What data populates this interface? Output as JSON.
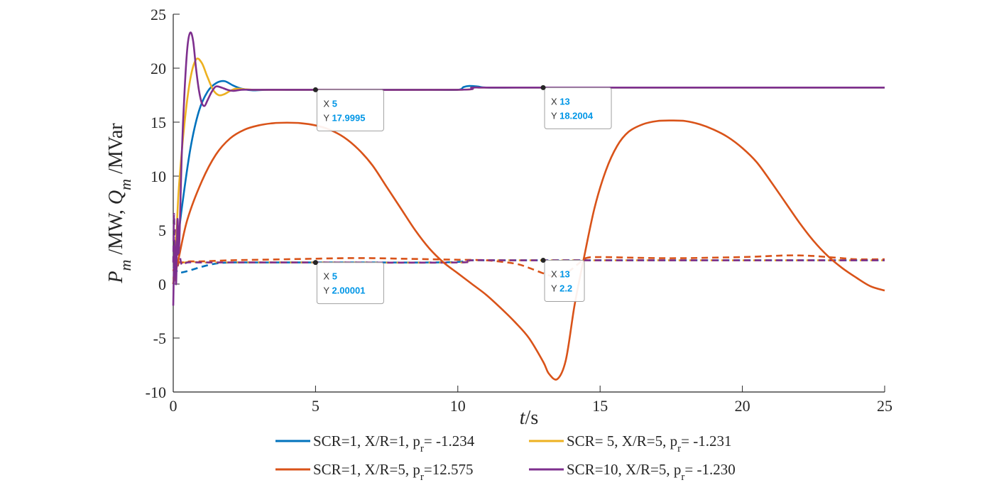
{
  "chart_data": {
    "type": "line",
    "xlabel": "t/s",
    "xlabel_italic": "t",
    "xlabel_unit": "/s",
    "ylabel": "P_m /MW, Q_m /MVar",
    "ylabel_parts": {
      "p": "P",
      "p_sub": "m",
      "p_unit": " /MW, ",
      "q": "Q",
      "q_sub": "m",
      "q_unit": " /MVar"
    },
    "xlim": [
      0,
      25
    ],
    "ylim": [
      -10,
      25
    ],
    "xticks": [
      0,
      5,
      10,
      15,
      20,
      25
    ],
    "yticks": [
      -10,
      -5,
      0,
      5,
      10,
      15,
      20,
      25
    ],
    "colors": {
      "blue": "#0072BD",
      "orange": "#D95319",
      "yellow": "#EDB120",
      "purple": "#7E2F8E"
    },
    "series": [
      {
        "name": "SCR=1, X/R=1, p_r= -1.234",
        "legend_main": "SCR=1, X/R=1, p",
        "legend_sub": "r",
        "legend_tail": "= -1.234",
        "color": "#0072BD",
        "P": {
          "x": [
            0,
            0.1,
            0.3,
            0.6,
            0.9,
            1.2,
            1.5,
            1.8,
            2.1,
            2.4,
            2.8,
            3.3,
            4,
            5,
            6,
            7,
            8,
            9,
            10,
            10.2,
            10.4,
            10.7,
            11,
            12,
            13,
            15,
            20,
            25
          ],
          "y": [
            0,
            2.5,
            7,
            12.5,
            16,
            17.8,
            18.6,
            18.8,
            18.4,
            18.1,
            17.95,
            18.0,
            18.0,
            18.0,
            18.0,
            18.0,
            18.0,
            18.0,
            18.0,
            18.25,
            18.35,
            18.3,
            18.2,
            18.2,
            18.2,
            18.2,
            18.2,
            18.2
          ]
        },
        "Q": {
          "x": [
            0,
            0.1,
            0.2,
            0.5,
            1,
            1.5,
            2,
            3,
            4,
            5,
            7,
            9,
            10,
            10.5,
            11,
            13,
            15,
            20,
            25
          ],
          "y": [
            1.6,
            1.3,
            1.05,
            1.2,
            1.6,
            1.9,
            2.0,
            2.0,
            2.0,
            2.0,
            2.0,
            2.0,
            2.05,
            2.2,
            2.2,
            2.2,
            2.2,
            2.2,
            2.2
          ]
        }
      },
      {
        "name": "SCR= 5, X/R=5, p_r= -1.231",
        "legend_main": "SCR=  5, X/R=5, p",
        "legend_sub": "r",
        "legend_tail": "= -1.231",
        "color": "#EDB120",
        "P": {
          "x": [
            0,
            0.1,
            0.2,
            0.4,
            0.6,
            0.8,
            1.0,
            1.2,
            1.4,
            1.6,
            1.8,
            2.0,
            2.2,
            2.5,
            2.8,
            3.2,
            4,
            5,
            10,
            10.5,
            11,
            13,
            25
          ],
          "y": [
            0,
            4,
            9,
            15,
            19,
            20.8,
            20.5,
            19.2,
            18.0,
            17.5,
            17.6,
            17.9,
            18.1,
            18.05,
            18.0,
            18.0,
            18.0,
            18.0,
            18.0,
            18.2,
            18.2,
            18.2,
            18.2
          ]
        },
        "Q": {
          "x": [
            0,
            0.1,
            0.2,
            0.4,
            0.7,
            1,
            2,
            5,
            10,
            10.5,
            13,
            25
          ],
          "y": [
            0.5,
            1.5,
            1.9,
            2.0,
            2.05,
            2.0,
            2.0,
            2.0,
            2.0,
            2.2,
            2.2,
            2.2
          ]
        }
      },
      {
        "name": "SCR=1, X/R=5, p_r=12.575",
        "legend_main": "SCR=1, X/R=5, p",
        "legend_sub": "r",
        "legend_tail": "=12.575",
        "color": "#D95319",
        "P": {
          "x": [
            0,
            0.2,
            0.5,
            1,
            1.5,
            2,
            2.5,
            3,
            3.5,
            4,
            4.5,
            5,
            5.5,
            6,
            6.5,
            7,
            7.5,
            8,
            8.5,
            9,
            9.5,
            10,
            10.5,
            11,
            11.5,
            12,
            12.5,
            13,
            13.2,
            13.5,
            13.8,
            14.1,
            14.4,
            14.8,
            15.2,
            15.6,
            16,
            16.5,
            17,
            17.5,
            18,
            18.5,
            19,
            19.5,
            20,
            20.5,
            21,
            21.5,
            22,
            22.5,
            23,
            23.5,
            24,
            24.5,
            25
          ],
          "y": [
            0,
            2.5,
            6,
            9.5,
            12,
            13.5,
            14.3,
            14.7,
            14.9,
            14.95,
            14.9,
            14.7,
            14.3,
            13.6,
            12.5,
            11,
            9,
            7,
            5,
            3.3,
            2,
            1,
            0,
            -1,
            -2.2,
            -3.5,
            -5,
            -7.2,
            -8.3,
            -8.8,
            -7,
            -2,
            2,
            7,
            10.5,
            12.8,
            14.1,
            14.8,
            15.1,
            15.15,
            15.1,
            14.8,
            14.3,
            13.6,
            12.6,
            11.3,
            9.5,
            7.6,
            5.7,
            4,
            2.6,
            1.5,
            0.6,
            -0.2,
            -0.6
          ]
        },
        "Q": {
          "x": [
            0,
            0.1,
            0.3,
            0.6,
            1,
            2,
            3,
            4,
            5,
            6,
            7,
            8,
            9,
            10,
            11,
            12,
            12.5,
            13,
            13.4,
            13.8,
            14.2,
            14.5,
            15,
            16,
            17,
            18,
            19,
            20,
            21,
            21.5,
            22,
            22.5,
            23,
            23.5,
            24,
            25
          ],
          "y": [
            1.2,
            2.0,
            2.0,
            2.1,
            2.1,
            2.2,
            2.25,
            2.3,
            2.35,
            2.4,
            2.4,
            2.35,
            2.3,
            2.25,
            2.2,
            1.9,
            1.5,
            1.0,
            0.7,
            1.0,
            1.8,
            2.4,
            2.5,
            2.45,
            2.4,
            2.4,
            2.45,
            2.5,
            2.6,
            2.65,
            2.65,
            2.6,
            2.5,
            2.4,
            2.3,
            2.3
          ]
        }
      },
      {
        "name": "SCR=10, X/R=5, p_r= -1.230",
        "legend_main": "SCR=10, X/R=5, p",
        "legend_sub": "r",
        "legend_tail": "= -1.230",
        "color": "#7E2F8E",
        "P": {
          "x": [
            0,
            0.05,
            0.1,
            0.15,
            0.2,
            0.3,
            0.4,
            0.5,
            0.6,
            0.7,
            0.8,
            0.9,
            1.0,
            1.1,
            1.2,
            1.35,
            1.5,
            1.7,
            1.9,
            2.1,
            2.4,
            2.7,
            3,
            3.5,
            4,
            5,
            10,
            10.5,
            11,
            13,
            25
          ],
          "y": [
            -2,
            4,
            0,
            6,
            3,
            12,
            18,
            22,
            23.3,
            22.5,
            20,
            18,
            16.8,
            16.5,
            17.0,
            17.8,
            18.3,
            18.2,
            18.0,
            17.9,
            18.0,
            18.0,
            18.0,
            18.0,
            18.0,
            18.0,
            18.0,
            18.2,
            18.2,
            18.2,
            18.2
          ]
        },
        "Q": {
          "x": [
            0,
            0.03,
            0.06,
            0.1,
            0.15,
            0.2,
            0.3,
            0.5,
            1,
            2,
            5,
            10,
            10.5,
            13,
            25
          ],
          "y": [
            2.0,
            6.5,
            1.0,
            5.0,
            1.5,
            3.0,
            1.8,
            2.0,
            2.0,
            2.0,
            2.0,
            2.0,
            2.2,
            2.2,
            2.2
          ]
        }
      }
    ],
    "datatips": [
      {
        "x_label": "X",
        "x_value": "5",
        "y_label": "Y",
        "y_value": "17.9995",
        "x": 5,
        "y": 17.9995
      },
      {
        "x_label": "X",
        "x_value": "13",
        "y_label": "Y",
        "y_value": "18.2004",
        "x": 13,
        "y": 18.2004
      },
      {
        "x_label": "X",
        "x_value": "5",
        "y_label": "Y",
        "y_value": "2.00001",
        "x": 5,
        "y": 2.00001
      },
      {
        "x_label": "X",
        "x_value": "13",
        "y_label": "Y",
        "y_value": "2.2",
        "x": 13,
        "y": 2.2
      }
    ]
  }
}
